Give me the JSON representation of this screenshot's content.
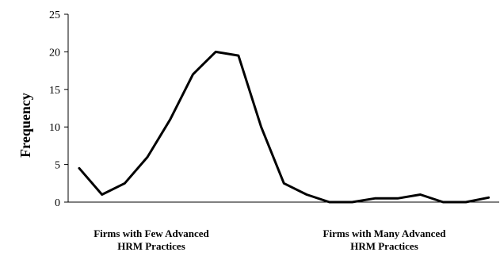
{
  "chart_data": {
    "type": "line",
    "ylabel": "Frequency",
    "ylim": [
      0,
      25
    ],
    "yticks": [
      0,
      5,
      10,
      15,
      20,
      25
    ],
    "x_group_labels": [
      [
        "Firms with Few Advanced",
        "HRM Practices"
      ],
      [
        "Firms with Many Advanced",
        "HRM Practices"
      ]
    ],
    "series": [
      {
        "values": [
          4.5,
          1,
          2.5,
          6,
          11,
          17,
          20,
          19.5,
          10,
          2.5,
          1,
          0,
          0,
          0.5,
          0.5,
          1,
          0,
          0,
          0.6
        ],
        "color": "#000000"
      }
    ],
    "grid": false,
    "legend": "none"
  }
}
